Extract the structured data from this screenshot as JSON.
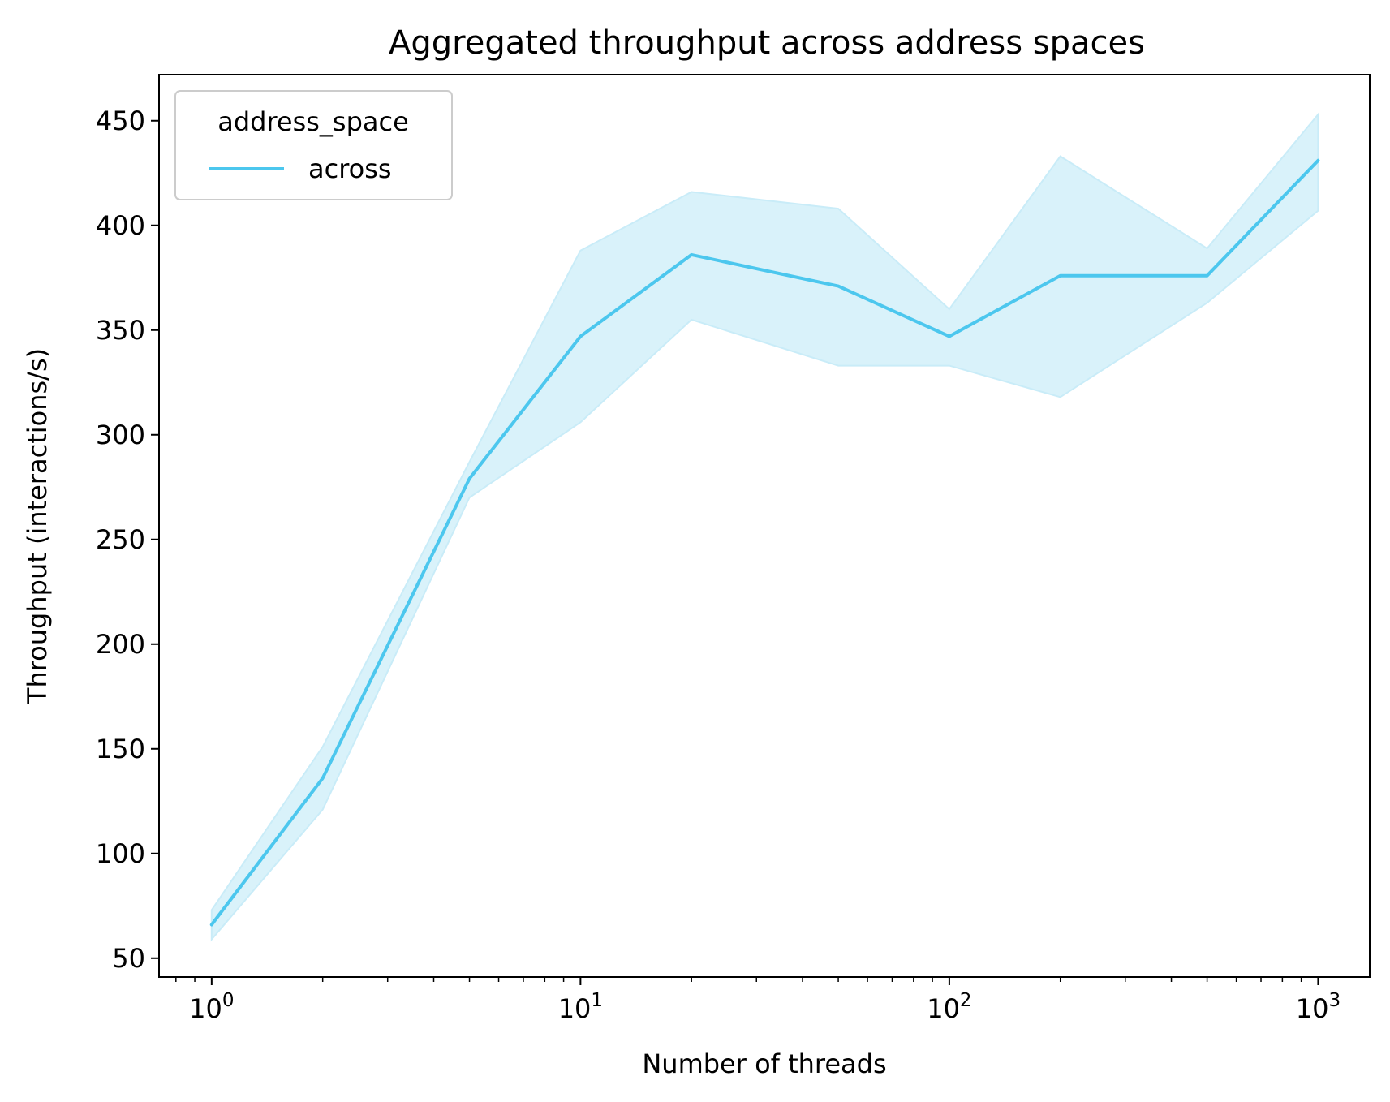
{
  "chart_data": {
    "type": "line",
    "title": "Aggregated throughput across address spaces",
    "xlabel": "Number of threads",
    "ylabel": "Throughput (interactions/s)",
    "xscale": "log",
    "xlim": [
      0.72,
      1380
    ],
    "ylim": [
      41,
      472
    ],
    "xticks": [
      {
        "value": 1,
        "base": "10",
        "exp": "0"
      },
      {
        "value": 10,
        "base": "10",
        "exp": "1"
      },
      {
        "value": 100,
        "base": "10",
        "exp": "2"
      },
      {
        "value": 1000,
        "base": "10",
        "exp": "3"
      }
    ],
    "yticks": [
      50,
      100,
      150,
      200,
      250,
      300,
      350,
      400,
      450
    ],
    "legend": {
      "title": "address_space",
      "placement": "top-left"
    },
    "grid": false,
    "series": [
      {
        "name": "across",
        "color": "#4cc7ee",
        "band_color": "#d9f2fa",
        "x": [
          1,
          2,
          5,
          10,
          20,
          50,
          100,
          200,
          500,
          1000
        ],
        "y": [
          66,
          136,
          279,
          347,
          386,
          371,
          347,
          376,
          376,
          431
        ],
        "lower": [
          59,
          121,
          270,
          306,
          355,
          333,
          333,
          318,
          363,
          407
        ],
        "upper": [
          73,
          151,
          287,
          388,
          416,
          408,
          360,
          433,
          389,
          453
        ]
      }
    ]
  }
}
